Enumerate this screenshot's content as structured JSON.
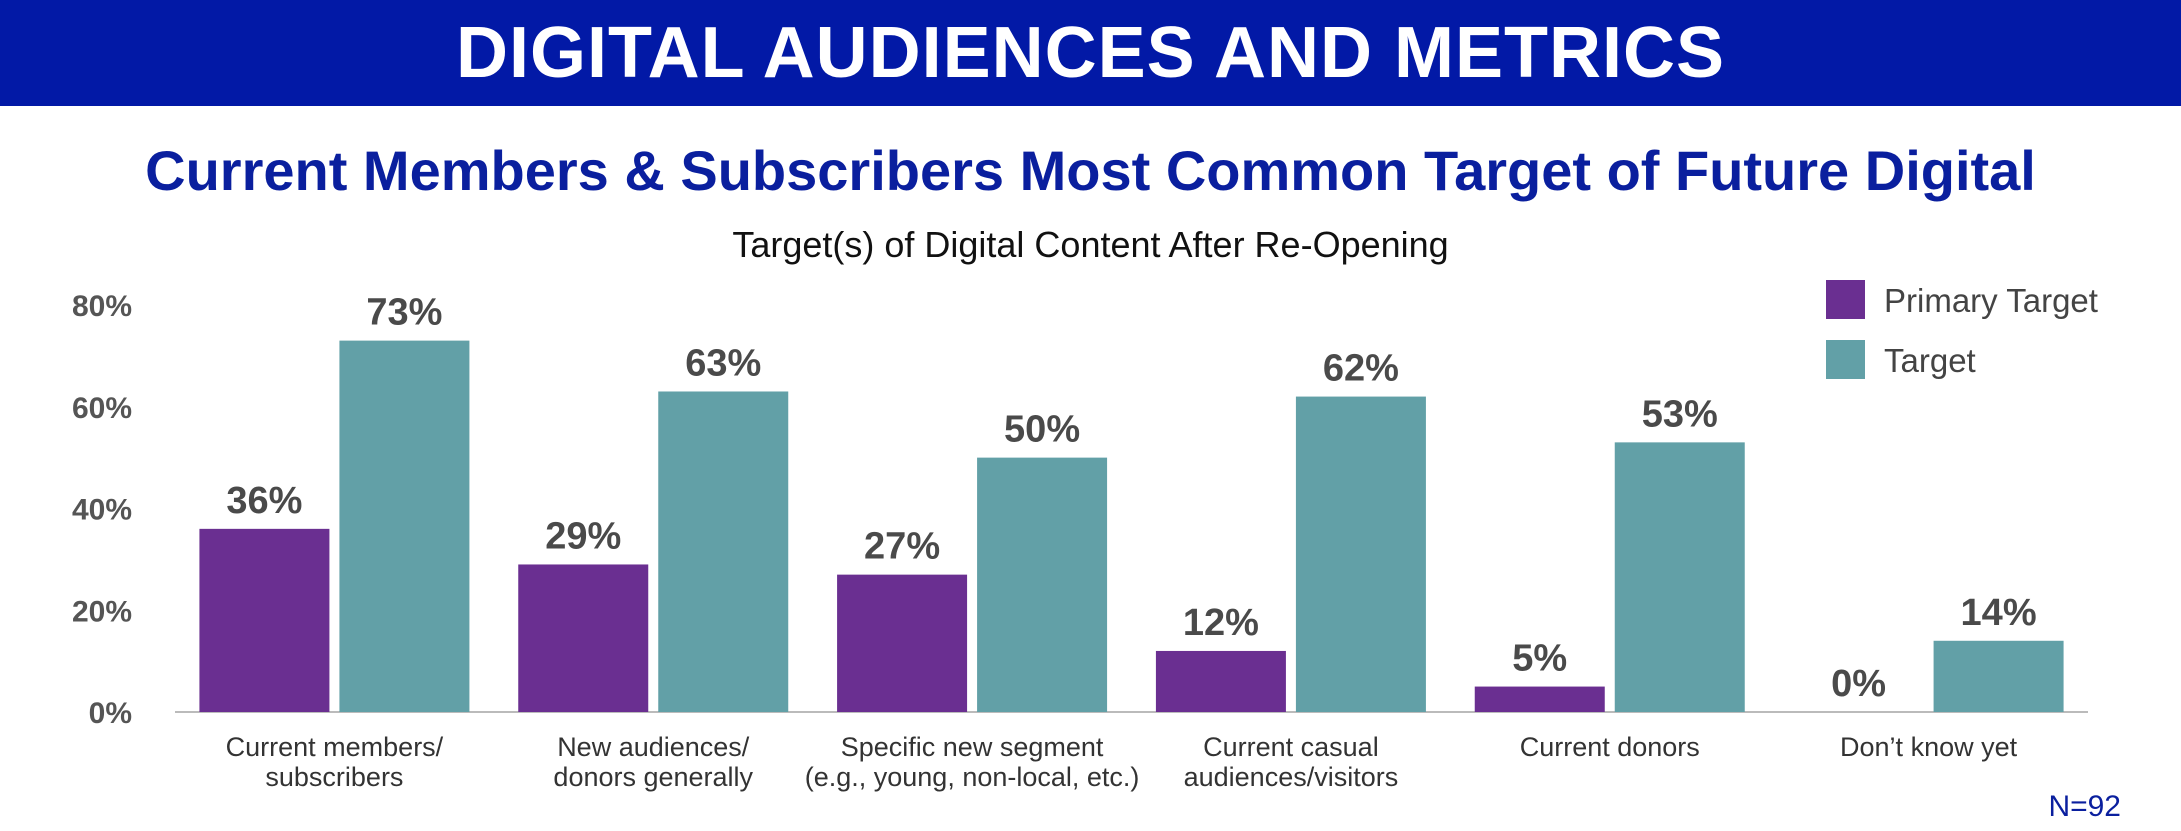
{
  "header": {
    "banner_title": "DIGITAL AUDIENCES AND METRICS",
    "headline": "Current Members & Subscribers Most Common Target of Future Digital",
    "subtitle": "Target(s) of Digital Content After Re-Opening",
    "sample_size": "N=92"
  },
  "colors": {
    "banner": "#0219a6",
    "headline": "#0a1f9e",
    "primary_target": "#6a2f91",
    "target": "#62a0a7",
    "value_label": "#4a4a4a",
    "axis_text": "#555555"
  },
  "chart_data": {
    "type": "bar",
    "title": "Target(s) of Digital Content After Re-Opening",
    "categories": [
      [
        "Current members/",
        "subscribers"
      ],
      [
        "New audiences/",
        "donors generally"
      ],
      [
        "Specific new segment",
        "(e.g., young, non-local, etc.)"
      ],
      [
        "Current casual",
        "audiences/visitors"
      ],
      [
        "Current donors"
      ],
      [
        "Don’t know yet"
      ]
    ],
    "series": [
      {
        "name": "Primary Target",
        "values": [
          36,
          29,
          27,
          12,
          5,
          0
        ],
        "labels": [
          "36%",
          "29%",
          "27%",
          "12%",
          "5%",
          "0%"
        ]
      },
      {
        "name": "Target",
        "values": [
          73,
          63,
          50,
          62,
          53,
          14
        ],
        "labels": [
          "73%",
          "63%",
          "50%",
          "62%",
          "53%",
          "14%"
        ]
      }
    ],
    "yticks": [
      0,
      20,
      40,
      60,
      80
    ],
    "ytick_labels": [
      "0%",
      "20%",
      "40%",
      "60%",
      "80%"
    ],
    "ylim": [
      0,
      80
    ],
    "grid": false,
    "legend": {
      "position": "top-right",
      "entries": [
        "Primary Target",
        "Target"
      ]
    }
  }
}
